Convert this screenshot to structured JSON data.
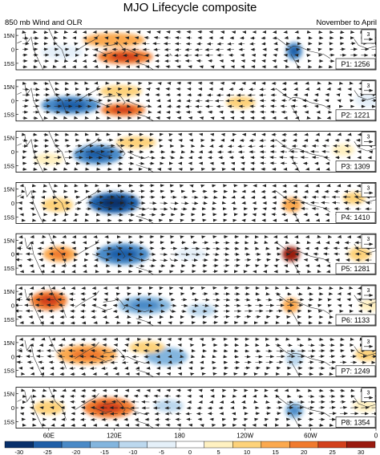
{
  "chart_data": {
    "type": "heatmap",
    "title": "MJO Lifecycle composite",
    "subtitle_left": "850 mb Wind and OLR",
    "subtitle_right": "November to April",
    "lat_labels": [
      "15N",
      "0",
      "15S"
    ],
    "lon_labels": [
      "60E",
      "120E",
      "180",
      "120W",
      "60W",
      "0"
    ],
    "vector_ref": "3",
    "colorbar": {
      "levels": [
        -30,
        -25,
        -20,
        -15,
        -10,
        -5,
        0,
        5,
        10,
        15,
        20,
        25,
        30
      ],
      "labels": [
        "-30",
        "-25",
        "-20",
        "-15",
        "-10",
        "-5",
        "0",
        "5",
        "10",
        "15",
        "20",
        "25",
        "30"
      ],
      "colors": [
        "#08306b",
        "#1f5fa8",
        "#4a8ac7",
        "#83b5de",
        "#bcd8ee",
        "#e5f0f9",
        "#ffffff",
        "#fff1c1",
        "#fdd27a",
        "#fba94f",
        "#f07a2e",
        "#d2401c",
        "#9a1b10"
      ]
    },
    "panels": [
      {
        "label": "P1: 1256",
        "anomalies": [
          {
            "lon": 120,
            "lat": 10,
            "value": 14,
            "w": 48,
            "h": 8
          },
          {
            "lon": 130,
            "lat": -8,
            "value": 22,
            "w": 42,
            "h": 9
          },
          {
            "lon": 72,
            "lat": -3,
            "value": -7,
            "w": 30,
            "h": 8
          },
          {
            "lon": 285,
            "lat": -2,
            "value": -18,
            "w": 6,
            "h": 12
          },
          {
            "lon": 12,
            "lat": 10,
            "value": 8,
            "w": 12,
            "h": 6
          }
        ]
      },
      {
        "label": "P2: 1221",
        "anomalies": [
          {
            "lon": 80,
            "lat": -5,
            "value": -20,
            "w": 45,
            "h": 12
          },
          {
            "lon": 128,
            "lat": -10,
            "value": 20,
            "w": 32,
            "h": 7
          },
          {
            "lon": 126,
            "lat": 10,
            "value": 12,
            "w": 30,
            "h": 6
          },
          {
            "lon": 236,
            "lat": -2,
            "value": 8,
            "w": 18,
            "h": 6
          },
          {
            "lon": 352,
            "lat": 0,
            "value": -6,
            "w": 14,
            "h": 8
          }
        ]
      },
      {
        "label": "P3: 1309",
        "anomalies": [
          {
            "lon": 105,
            "lat": -3,
            "value": -20,
            "w": 36,
            "h": 14
          },
          {
            "lon": 140,
            "lat": 10,
            "value": 9,
            "w": 28,
            "h": 6
          },
          {
            "lon": 60,
            "lat": -8,
            "value": 6,
            "w": 18,
            "h": 6
          },
          {
            "lon": 330,
            "lat": 2,
            "value": 6,
            "w": 12,
            "h": 6
          }
        ]
      },
      {
        "label": "P4: 1410",
        "anomalies": [
          {
            "lon": 120,
            "lat": 0,
            "value": -24,
            "w": 38,
            "h": 16
          },
          {
            "lon": 68,
            "lat": -2,
            "value": 12,
            "w": 20,
            "h": 8
          },
          {
            "lon": 283,
            "lat": -2,
            "value": 14,
            "w": 9,
            "h": 9
          },
          {
            "lon": 340,
            "lat": 5,
            "value": 10,
            "w": 12,
            "h": 6
          },
          {
            "lon": 18,
            "lat": 2,
            "value": 6,
            "w": 12,
            "h": 6
          }
        ]
      },
      {
        "label": "P5: 1281",
        "anomalies": [
          {
            "lon": 128,
            "lat": 0,
            "value": -22,
            "w": 40,
            "h": 16
          },
          {
            "lon": 70,
            "lat": 0,
            "value": 16,
            "w": 22,
            "h": 10
          },
          {
            "lon": 282,
            "lat": 0,
            "value": 28,
            "w": 7,
            "h": 9
          },
          {
            "lon": 345,
            "lat": 0,
            "value": 10,
            "w": 12,
            "h": 8
          },
          {
            "lon": 190,
            "lat": 0,
            "value": -6,
            "w": 20,
            "h": 6
          }
        ]
      },
      {
        "label": "P6: 1133",
        "anomalies": [
          {
            "lon": 60,
            "lat": 5,
            "value": 18,
            "w": 25,
            "h": 14
          },
          {
            "lon": 148,
            "lat": 0,
            "value": -16,
            "w": 40,
            "h": 12
          },
          {
            "lon": 282,
            "lat": 0,
            "value": 14,
            "w": 7,
            "h": 9
          },
          {
            "lon": 200,
            "lat": -5,
            "value": -8,
            "w": 18,
            "h": 6
          },
          {
            "lon": 355,
            "lat": 0,
            "value": 6,
            "w": 12,
            "h": 6
          }
        ]
      },
      {
        "label": "P7: 1249",
        "anomalies": [
          {
            "lon": 95,
            "lat": 2,
            "value": 16,
            "w": 46,
            "h": 14
          },
          {
            "lon": 168,
            "lat": 0,
            "value": -14,
            "w": 30,
            "h": 12
          },
          {
            "lon": 150,
            "lat": 10,
            "value": 9,
            "w": 24,
            "h": 6
          },
          {
            "lon": 285,
            "lat": -2,
            "value": -12,
            "w": 7,
            "h": 10
          },
          {
            "lon": 352,
            "lat": 2,
            "value": 8,
            "w": 14,
            "h": 7
          }
        ]
      },
      {
        "label": "P8: 1354",
        "anomalies": [
          {
            "lon": 115,
            "lat": 0,
            "value": 22,
            "w": 38,
            "h": 15
          },
          {
            "lon": 60,
            "lat": 0,
            "value": 8,
            "w": 20,
            "h": 8
          },
          {
            "lon": 170,
            "lat": 2,
            "value": -8,
            "w": 18,
            "h": 6
          },
          {
            "lon": 285,
            "lat": -3,
            "value": -16,
            "w": 8,
            "h": 10
          },
          {
            "lon": 350,
            "lat": 2,
            "value": 7,
            "w": 14,
            "h": 6
          }
        ]
      }
    ]
  }
}
